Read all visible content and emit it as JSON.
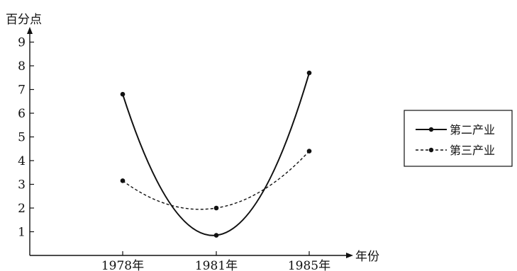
{
  "chart_data": {
    "type": "line",
    "ylabel": "百分点",
    "xlabel": "年份",
    "categories": [
      "1978年",
      "1981年",
      "1985年"
    ],
    "yticks": [
      "1",
      "2",
      "3",
      "4",
      "5",
      "6",
      "7",
      "8",
      "9"
    ],
    "ylim": [
      0,
      9.6
    ],
    "series": [
      {
        "name": "第二产业",
        "style": "solid",
        "color": "#111111",
        "values": [
          6.8,
          0.85,
          7.7
        ]
      },
      {
        "name": "第三产业",
        "style": "dashed",
        "color": "#111111",
        "values": [
          3.15,
          2.0,
          4.4
        ]
      }
    ],
    "legend": "right",
    "grid": false
  }
}
